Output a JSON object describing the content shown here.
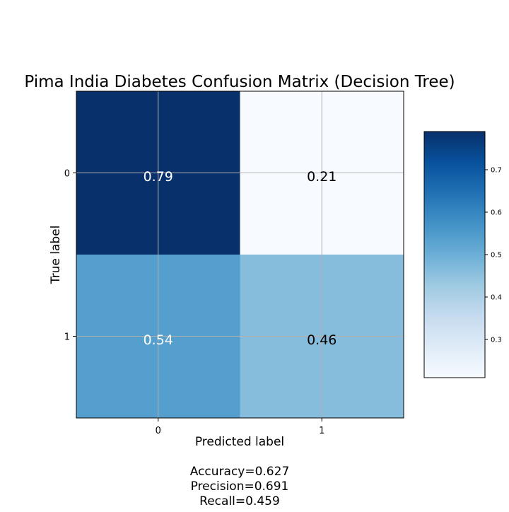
{
  "chart_data": {
    "type": "heatmap",
    "title": "Pima India Diabetes Confusion Matrix (Decision Tree)",
    "xlabel": "Predicted label",
    "ylabel": "True label",
    "x_categories": [
      "0",
      "1"
    ],
    "y_categories": [
      "0",
      "1"
    ],
    "matrix": [
      [
        0.79,
        0.21
      ],
      [
        0.54,
        0.46
      ]
    ],
    "cell_labels": [
      [
        "0.79",
        "0.21"
      ],
      [
        "0.54",
        "0.46"
      ]
    ],
    "colormap": "Blues",
    "colorbar": {
      "range": [
        0.21,
        0.79
      ],
      "ticks": [
        0.3,
        0.4,
        0.5,
        0.6,
        0.7
      ],
      "tick_labels": [
        "0.3",
        "0.4",
        "0.5",
        "0.6",
        "0.7"
      ]
    },
    "grid": true,
    "metrics": [
      "Accuracy=0.627",
      "Precision=0.691",
      "Recall=0.459"
    ]
  }
}
